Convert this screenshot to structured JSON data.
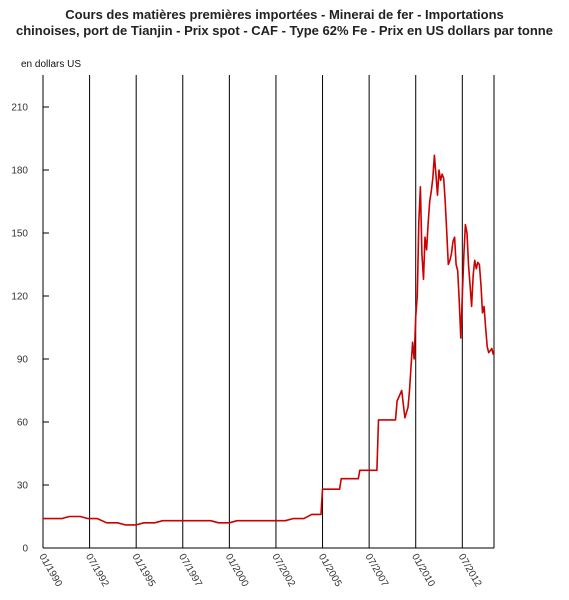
{
  "chart_data": {
    "type": "line",
    "title_line1": "Cours des matières premières importées - Minerai de fer - Importations",
    "title_line2": "chinoises, port de Tianjin - Prix spot - CAF - Type 62% Fe - Prix en US dollars par tonne",
    "ylabel": "en dollars US",
    "xlabel": "",
    "ylim": [
      0,
      220
    ],
    "yticks": [
      0,
      30,
      60,
      90,
      120,
      150,
      180,
      210
    ],
    "xticks": [
      "01/1990",
      "07/1992",
      "01/1995",
      "07/1997",
      "01/2000",
      "07/2002",
      "01/2005",
      "07/2007",
      "01/2010",
      "07/2012"
    ],
    "grid": "vertical",
    "series": [
      {
        "color": "#cc0000",
        "x": [
          "01/1990",
          "01/1991",
          "06/1991",
          "01/1992",
          "06/1992",
          "12/1992",
          "06/1993",
          "01/1994",
          "06/1994",
          "01/1995",
          "06/1995",
          "01/1996",
          "06/1996",
          "01/1997",
          "06/1997",
          "01/1998",
          "06/1998",
          "01/1999",
          "06/1999",
          "01/2000",
          "06/2000",
          "01/2001",
          "06/2001",
          "01/2002",
          "06/2002",
          "01/2003",
          "06/2003",
          "01/2004",
          "06/2004",
          "12/2004",
          "01/2005",
          "06/2005",
          "12/2005",
          "01/2006",
          "06/2006",
          "12/2006",
          "01/2007",
          "06/2007",
          "12/2007",
          "01/2008",
          "06/2008",
          "10/2008",
          "12/2008",
          "01/2009",
          "04/2009",
          "06/2009",
          "08/2009",
          "09/2009",
          "11/2009",
          "12/2009",
          "01/2010",
          "02/2010",
          "03/2010",
          "04/2010",
          "05/2010",
          "06/2010",
          "07/2010",
          "08/2010",
          "09/2010",
          "10/2010",
          "11/2010",
          "12/2010",
          "01/2011",
          "02/2011",
          "03/2011",
          "04/2011",
          "05/2011",
          "06/2011",
          "07/2011",
          "08/2011",
          "09/2011",
          "10/2011",
          "11/2011",
          "12/2011",
          "01/2012",
          "02/2012",
          "03/2012",
          "04/2012",
          "05/2012",
          "06/2012",
          "07/2012",
          "08/2012",
          "09/2012",
          "10/2012",
          "11/2012",
          "12/2012",
          "01/2013",
          "02/2013",
          "03/2013",
          "04/2013",
          "05/2013",
          "06/2013",
          "07/2013",
          "08/2013",
          "09/2013",
          "10/2013",
          "11/2013",
          "12/2013",
          "01/2014",
          "02/2014",
          "03/2014"
        ],
        "values": [
          14,
          14,
          15,
          15,
          14,
          14,
          12,
          12,
          11,
          11,
          12,
          12,
          13,
          13,
          13,
          13,
          13,
          13,
          12,
          12,
          13,
          13,
          13,
          13,
          13,
          13,
          14,
          14,
          16,
          16,
          28,
          28,
          28,
          33,
          33,
          33,
          37,
          37,
          37,
          61,
          61,
          61,
          61,
          70,
          75,
          62,
          67,
          75,
          98,
          90,
          110,
          120,
          155,
          172,
          140,
          128,
          148,
          142,
          155,
          165,
          170,
          176,
          187,
          178,
          168,
          180,
          175,
          178,
          176,
          165,
          150,
          135,
          137,
          140,
          146,
          148,
          135,
          132,
          118,
          100,
          120,
          140,
          154,
          150,
          135,
          125,
          115,
          130,
          137,
          133,
          136,
          135,
          125,
          112,
          115,
          105,
          96,
          93,
          94,
          95,
          92
        ]
      }
    ]
  }
}
